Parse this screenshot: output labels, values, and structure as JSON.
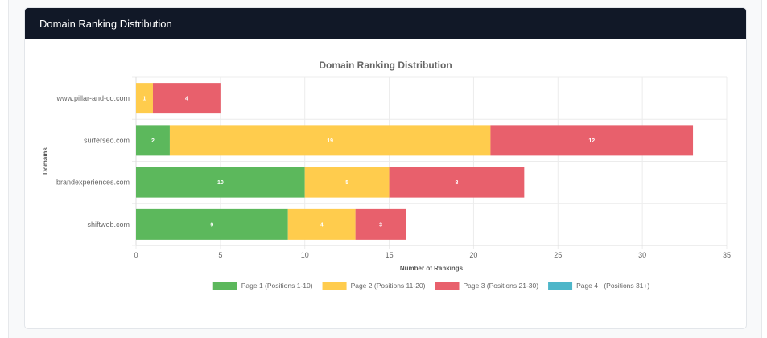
{
  "card": {
    "header_title": "Domain Ranking Distribution"
  },
  "chart_data": {
    "type": "bar",
    "orientation": "horizontal",
    "stacked": true,
    "title": "Domain Ranking Distribution",
    "xlabel": "Number of Rankings",
    "ylabel": "Domains",
    "xlim": [
      0,
      35
    ],
    "xticks": [
      0,
      5,
      10,
      15,
      20,
      25,
      30,
      35
    ],
    "grid": true,
    "legend_position": "bottom",
    "categories": [
      "www.pillar-and-co.com",
      "surferseo.com",
      "brandexperiences.com",
      "shiftweb.com"
    ],
    "series": [
      {
        "name": "Page 1 (Positions 1-10)",
        "color": "#5cb85c",
        "values": [
          0,
          2,
          10,
          9
        ]
      },
      {
        "name": "Page 2 (Positions 11-20)",
        "color": "#ffcc4d",
        "values": [
          1,
          19,
          5,
          4
        ]
      },
      {
        "name": "Page 3 (Positions 21-30)",
        "color": "#e8606c",
        "values": [
          4,
          12,
          8,
          3
        ]
      },
      {
        "name": "Page 4+ (Positions 31+)",
        "color": "#4db6c9",
        "values": [
          0,
          0,
          0,
          0
        ]
      }
    ]
  }
}
